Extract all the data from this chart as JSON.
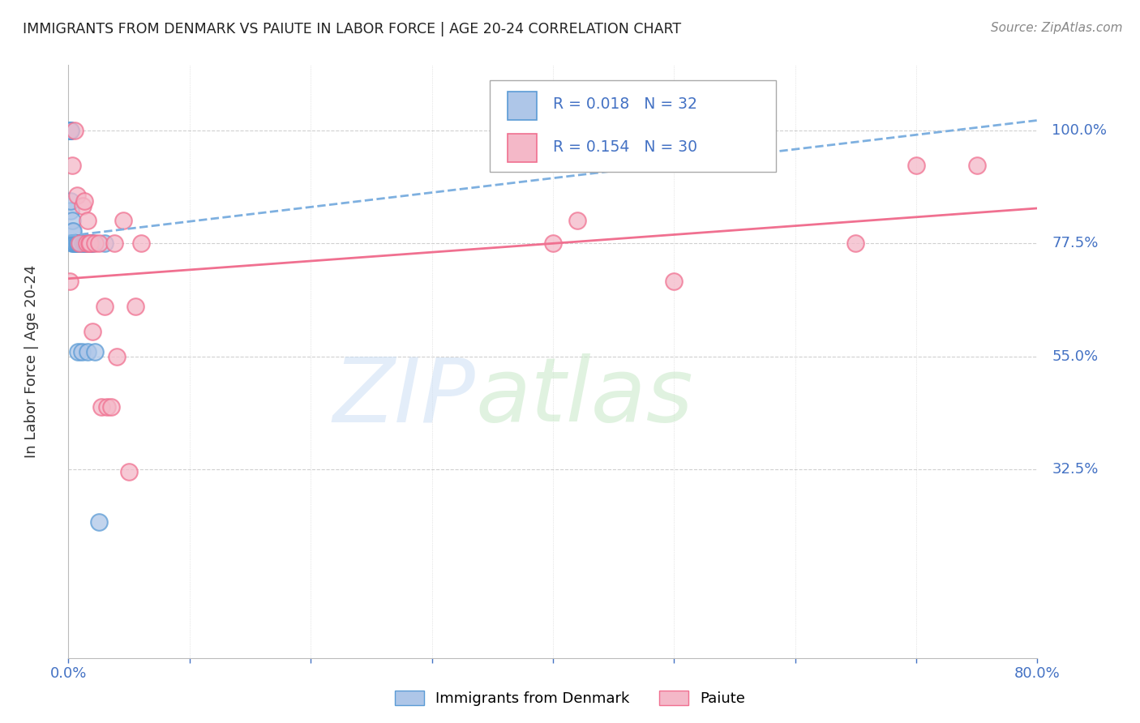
{
  "title": "IMMIGRANTS FROM DENMARK VS PAIUTE IN LABOR FORCE | AGE 20-24 CORRELATION CHART",
  "source": "Source: ZipAtlas.com",
  "ylabel": "In Labor Force | Age 20-24",
  "xlim": [
    0.0,
    0.8
  ],
  "ylim": [
    -0.05,
    1.13
  ],
  "yticks": [
    0.325,
    0.55,
    0.775,
    1.0
  ],
  "ytick_labels": [
    "32.5%",
    "55.0%",
    "77.5%",
    "100.0%"
  ],
  "xticks": [
    0.0,
    0.1,
    0.2,
    0.3,
    0.4,
    0.5,
    0.6,
    0.7,
    0.8
  ],
  "denmark_R": 0.018,
  "denmark_N": 32,
  "paiute_R": 0.154,
  "paiute_N": 30,
  "denmark_color": "#aec6e8",
  "paiute_color": "#f4b8c8",
  "denmark_edge_color": "#5b9bd5",
  "paiute_edge_color": "#f07090",
  "denmark_line_color": "#7eb0e0",
  "paiute_line_color": "#f07090",
  "tick_color": "#4472c4",
  "grid_color": "#d0d0d0",
  "background_color": "#ffffff",
  "denmark_trend_x": [
    0.0,
    0.8
  ],
  "denmark_trend_y": [
    0.79,
    1.02
  ],
  "paiute_trend_x": [
    0.0,
    0.8
  ],
  "paiute_trend_y": [
    0.705,
    0.845
  ],
  "denmark_x": [
    0.001,
    0.001,
    0.001,
    0.002,
    0.002,
    0.002,
    0.002,
    0.003,
    0.003,
    0.003,
    0.004,
    0.004,
    0.005,
    0.006,
    0.007,
    0.008,
    0.008,
    0.009,
    0.01,
    0.011,
    0.012,
    0.013,
    0.014,
    0.015,
    0.016,
    0.017,
    0.018,
    0.019,
    0.02,
    0.022,
    0.025,
    0.03
  ],
  "denmark_y": [
    1.0,
    1.0,
    1.0,
    1.0,
    1.0,
    0.84,
    0.86,
    0.8,
    0.82,
    0.775,
    0.8,
    0.775,
    0.775,
    0.775,
    0.775,
    0.775,
    0.56,
    0.775,
    0.775,
    0.56,
    0.775,
    0.775,
    0.775,
    0.775,
    0.56,
    0.775,
    0.775,
    0.775,
    0.775,
    0.56,
    0.22,
    0.775
  ],
  "paiute_x": [
    0.001,
    0.003,
    0.005,
    0.007,
    0.009,
    0.012,
    0.013,
    0.015,
    0.016,
    0.017,
    0.018,
    0.02,
    0.022,
    0.025,
    0.027,
    0.03,
    0.032,
    0.035,
    0.038,
    0.04,
    0.045,
    0.05,
    0.055,
    0.06,
    0.4,
    0.42,
    0.5,
    0.65,
    0.7,
    0.75
  ],
  "paiute_y": [
    0.7,
    0.93,
    1.0,
    0.87,
    0.775,
    0.85,
    0.86,
    0.775,
    0.82,
    0.775,
    0.775,
    0.6,
    0.775,
    0.775,
    0.45,
    0.65,
    0.45,
    0.45,
    0.775,
    0.55,
    0.82,
    0.32,
    0.65,
    0.775,
    0.775,
    0.82,
    0.7,
    0.775,
    0.93,
    0.93
  ]
}
